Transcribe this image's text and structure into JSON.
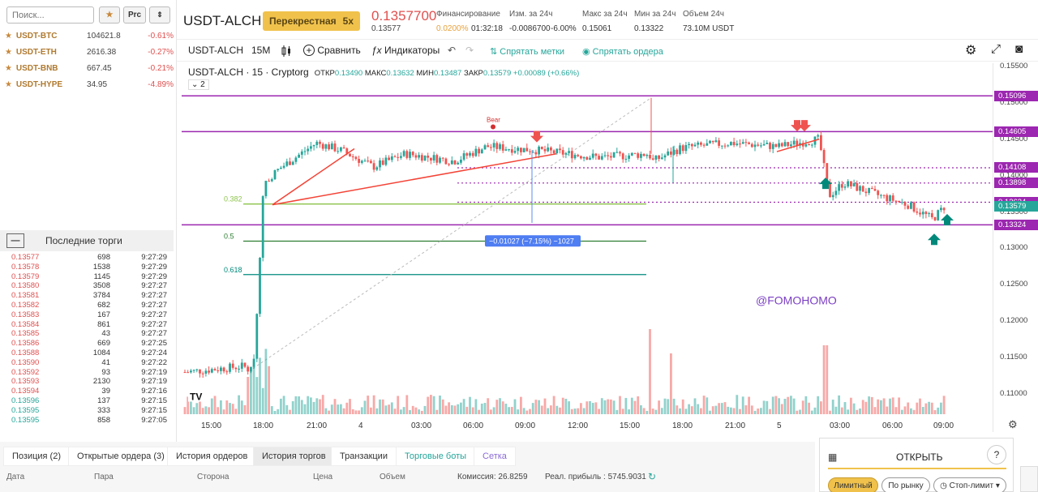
{
  "left": {
    "search_placeholder": "Поиск...",
    "btn_prc": "Prc",
    "watch": [
      {
        "sym": "USDT-BTC",
        "price": "104621.8",
        "change": "-0.61%"
      },
      {
        "sym": "USDT-ETH",
        "price": "2616.38",
        "change": "-0.27%"
      },
      {
        "sym": "USDT-BNB",
        "price": "667.45",
        "change": "-0.21%"
      },
      {
        "sym": "USDT-HYPE",
        "price": "34.95",
        "change": "-4.89%"
      }
    ],
    "trades_title": "Последние торги",
    "trades": [
      {
        "p": "0.13577",
        "q": "698",
        "t": "9:27:29",
        "c": "red"
      },
      {
        "p": "0.13578",
        "q": "1538",
        "t": "9:27:29",
        "c": "red"
      },
      {
        "p": "0.13579",
        "q": "1145",
        "t": "9:27:29",
        "c": "red"
      },
      {
        "p": "0.13580",
        "q": "3508",
        "t": "9:27:27",
        "c": "red"
      },
      {
        "p": "0.13581",
        "q": "3784",
        "t": "9:27:27",
        "c": "red"
      },
      {
        "p": "0.13582",
        "q": "682",
        "t": "9:27:27",
        "c": "red"
      },
      {
        "p": "0.13583",
        "q": "167",
        "t": "9:27:27",
        "c": "red"
      },
      {
        "p": "0.13584",
        "q": "861",
        "t": "9:27:27",
        "c": "red"
      },
      {
        "p": "0.13585",
        "q": "43",
        "t": "9:27:27",
        "c": "red"
      },
      {
        "p": "0.13586",
        "q": "669",
        "t": "9:27:25",
        "c": "red"
      },
      {
        "p": "0.13588",
        "q": "1084",
        "t": "9:27:24",
        "c": "red"
      },
      {
        "p": "0.13590",
        "q": "41",
        "t": "9:27:22",
        "c": "red"
      },
      {
        "p": "0.13592",
        "q": "93",
        "t": "9:27:19",
        "c": "red"
      },
      {
        "p": "0.13593",
        "q": "2130",
        "t": "9:27:19",
        "c": "red"
      },
      {
        "p": "0.13594",
        "q": "39",
        "t": "9:27:16",
        "c": "red"
      },
      {
        "p": "0.13596",
        "q": "137",
        "t": "9:27:15",
        "c": "grn"
      },
      {
        "p": "0.13595",
        "q": "333",
        "t": "9:27:15",
        "c": "grn"
      },
      {
        "p": "0.13595",
        "q": "858",
        "t": "9:27:05",
        "c": "grn"
      }
    ]
  },
  "header": {
    "pair": "USDT-ALCH",
    "margin_mode": "Перекрестная",
    "leverage": "5x",
    "price": "0.1357700",
    "index_price": "0.13577",
    "funding_label": "Финансирование",
    "funding_rate": "0.0200%",
    "funding_timer": "01:32:18",
    "change_label": "Изм. за 24ч",
    "change_value": "-0.0086700",
    "change_pct": "-6.00%",
    "high_label": "Макс за 24ч",
    "high_value": "0.15061",
    "low_label": "Мин за 24ч",
    "low_value": "0.13322",
    "vol_label": "Объем 24ч",
    "vol_value": "73.10M USDT"
  },
  "toolbar": {
    "symbol": "USDT-ALCH",
    "interval": "15M",
    "compare": "Сравнить",
    "indicators": "Индикаторы",
    "hide_marks": "Спрятать метки",
    "hide_orders": "Спрятать ордера"
  },
  "legend": {
    "title": "USDT-ALCH · 15 · Cryptorg",
    "o_label": "ОТКР",
    "o": "0.13490",
    "h_label": "МАКС",
    "h": "0.13632",
    "l_label": "МИН",
    "l": "0.13487",
    "c_label": "ЗАКР",
    "c": "0.13579",
    "delta": "+0.00089 (+0.66%)",
    "collapse": "2"
  },
  "chart_data": {
    "type": "candlestick",
    "x_ticks": [
      "15:00",
      "18:00",
      "21:00",
      "4",
      "03:00",
      "06:00",
      "09:00",
      "12:00",
      "15:00",
      "18:00",
      "21:00",
      "5",
      "03:00",
      "06:00",
      "09:00"
    ],
    "y_ticks": [
      "0.15500",
      "0.15000",
      "0.14500",
      "0.14000",
      "0.13500",
      "0.13000",
      "0.12500",
      "0.12000",
      "0.11500",
      "0.11000"
    ],
    "ylim": [
      0.1055,
      0.1575
    ],
    "price_labels": [
      {
        "v": "0.15096",
        "color": "#9c27b0"
      },
      {
        "v": "0.14605",
        "color": "#9c27b0"
      },
      {
        "v": "0.14108",
        "color": "#9c27b0"
      },
      {
        "v": "0.13898",
        "color": "#9c27b0"
      },
      {
        "v": "0.13634",
        "color": "#9c27b0"
      },
      {
        "v": "0.13579",
        "color": "#26a69a"
      },
      {
        "v": "0.13324",
        "color": "#9c27b0"
      }
    ],
    "hidden_tick": "0.14000",
    "fib_labels": [
      "0.382",
      "0.5",
      "0.618"
    ],
    "bear_label": "Bear",
    "measure_label": "−0.01027 (−7.15%) −1027",
    "watermark": "@FOMOHOMO",
    "colors": {
      "up": "#26a69a",
      "down": "#ef5350",
      "level": "#9c27b0"
    }
  },
  "bottom": {
    "tabs": [
      "Позиция (2)",
      "Открытые ордера (3)",
      "История ордеров",
      "История торгов",
      "Транзакции",
      "Торговые боты",
      "Сетка"
    ],
    "cols": [
      "Дата",
      "Пара",
      "Сторона",
      "Цена",
      "Объем"
    ],
    "commission": "Комиссия: 26.8259",
    "pnl": "Реал. прибыль : 5745.9031"
  },
  "open_panel": {
    "title": "ОТКРЫТЬ",
    "help": "?",
    "limit": "Лимитный",
    "market": "По рынку",
    "stop": "Стоп-лимит"
  }
}
